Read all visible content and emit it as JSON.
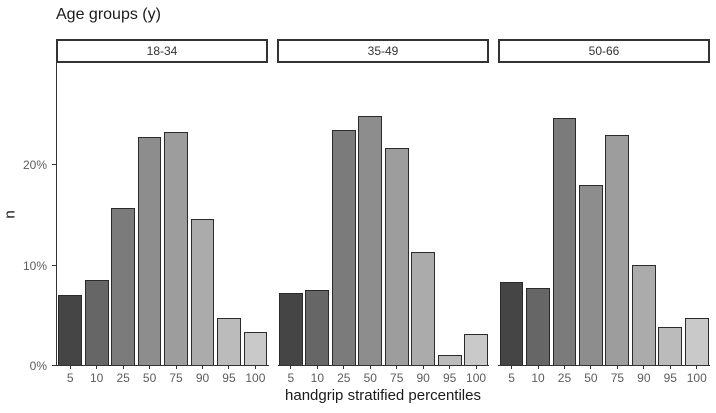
{
  "chart_data": {
    "type": "bar",
    "title": "Age groups (y)",
    "xlabel": "handgrip stratified percentiles",
    "ylabel": "n",
    "categories": [
      "5",
      "10",
      "25",
      "50",
      "75",
      "90",
      "95",
      "100"
    ],
    "y_ticks": [
      "0%",
      "10%",
      "20%"
    ],
    "y_tick_values": [
      0,
      10,
      20
    ],
    "ylim": [
      0,
      30.2
    ],
    "grid": false,
    "legend": "none",
    "facets": [
      {
        "label": "18-34",
        "values": [
          7.0,
          8.5,
          15.7,
          22.8,
          23.3,
          14.6,
          4.7,
          3.3
        ]
      },
      {
        "label": "35-49",
        "values": [
          7.2,
          7.5,
          23.5,
          24.9,
          21.7,
          11.3,
          1.0,
          3.1
        ]
      },
      {
        "label": "50-66",
        "values": [
          8.3,
          7.7,
          24.7,
          18.0,
          23.0,
          10.0,
          3.8,
          4.7
        ]
      }
    ],
    "bar_colors": [
      "#454545",
      "#666666",
      "#7b7b7b",
      "#8d8d8d",
      "#9d9d9d",
      "#ababab",
      "#bbbbbb",
      "#c9c9c9"
    ],
    "bar_border_color": "#2b2b2b",
    "axis_line_color": "#333333",
    "tick_label_color": "#5c5c5c",
    "text_color": "#1a1a1a",
    "background_color": "#ffffff"
  }
}
